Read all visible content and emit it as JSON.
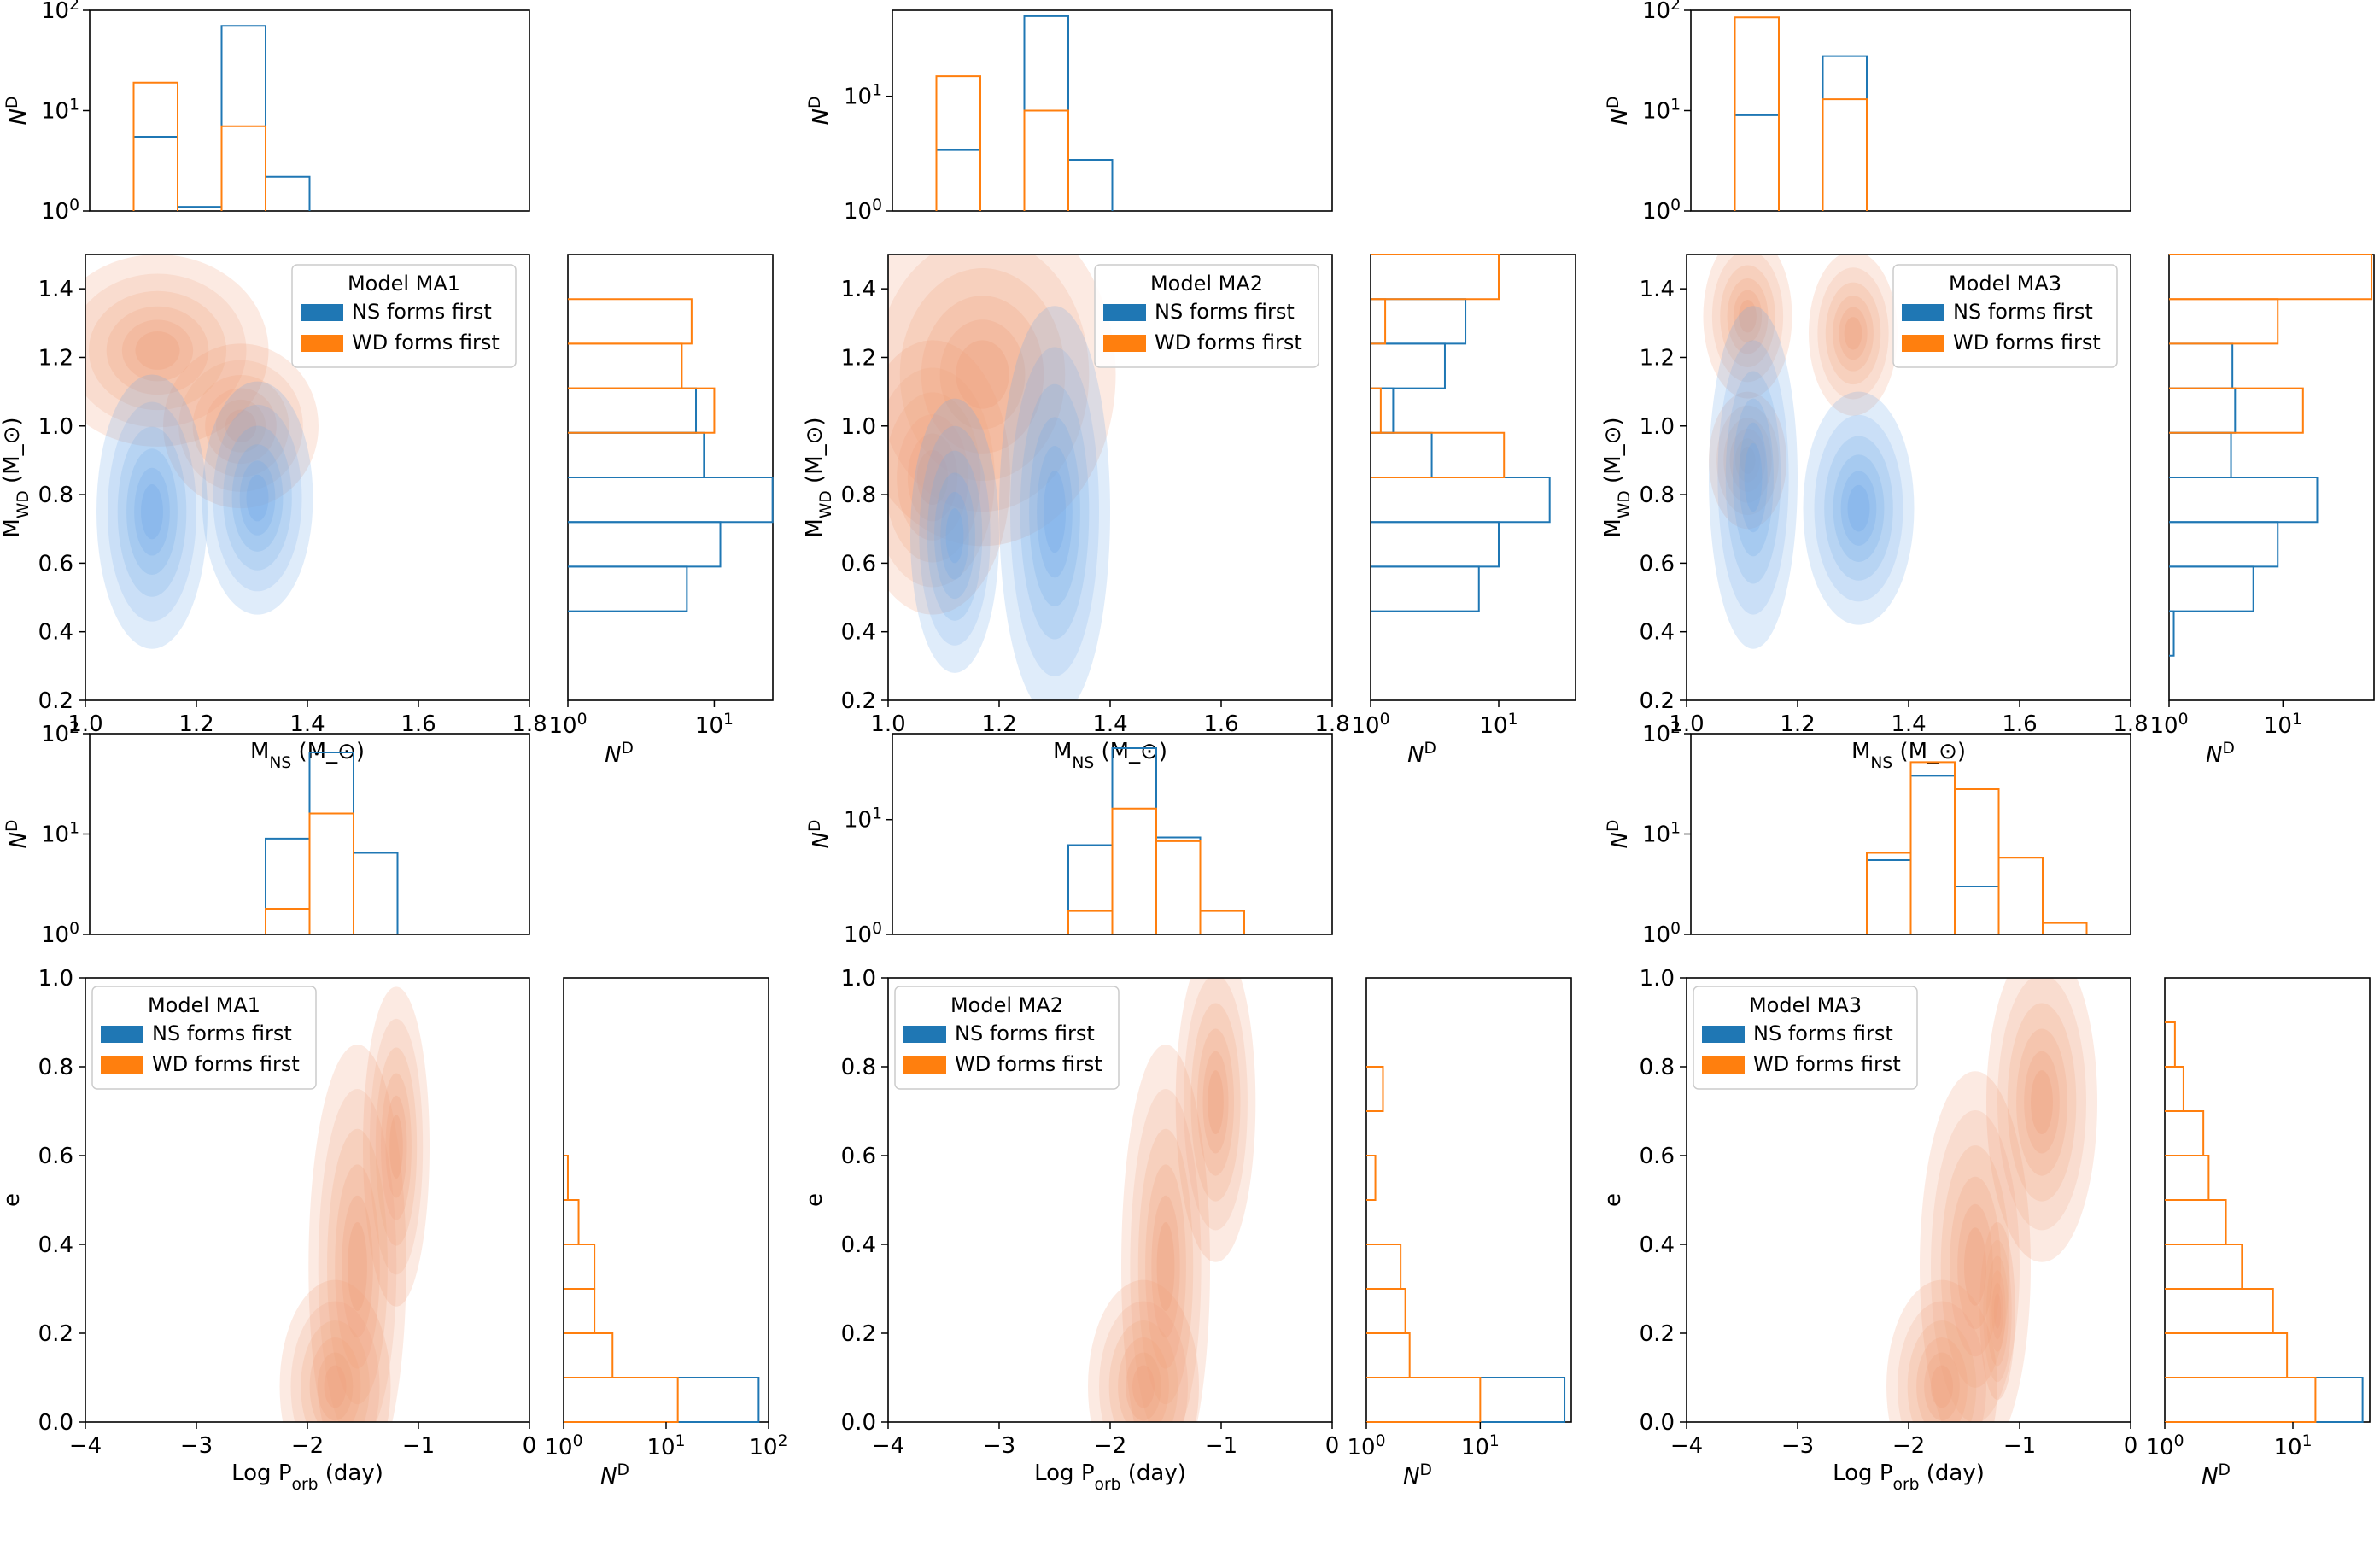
{
  "colors": {
    "ns": "#1f77b4",
    "wd": "#ff7f0e",
    "ns_fill": "#a9c8ee",
    "wd_fill": "#f4b79c"
  },
  "legend": {
    "ns_label": "NS forms first",
    "wd_label": "WD forms first"
  },
  "chart_data": [
    {
      "type": "composite-kde-histogram",
      "model": "Model MA1",
      "mass": {
        "xlabel": "M_NS (M_⊙)",
        "ylabel": "M_WD (M_⊙)",
        "xlim": [
          1.0,
          1.8
        ],
        "ylim": [
          0.2,
          1.5
        ],
        "xticks": [
          "1.0",
          "1.2",
          "1.4",
          "1.6",
          "1.8"
        ],
        "yticks": [
          "0.2",
          "0.4",
          "0.6",
          "0.8",
          "1.0",
          "1.2",
          "1.4"
        ],
        "kde_ns": [
          {
            "cx": 1.31,
            "cy": 0.79,
            "sx": 0.05,
            "sy": 0.17
          },
          {
            "cx": 1.12,
            "cy": 0.75,
            "sx": 0.05,
            "sy": 0.2
          }
        ],
        "kde_wd": [
          {
            "cx": 1.13,
            "cy": 1.22,
            "sx": 0.1,
            "sy": 0.14
          },
          {
            "cx": 1.28,
            "cy": 1.0,
            "sx": 0.07,
            "sy": 0.12
          }
        ],
        "top_hist": {
          "ylabel": "N^D",
          "yticks": [
            "10^0",
            "10^1",
            "10^2"
          ],
          "ylim_log": [
            0,
            2
          ],
          "edges": [
            1.08,
            1.16,
            1.24,
            1.32,
            1.4
          ],
          "ns": [
            5.5,
            1.1,
            70,
            2.2
          ],
          "wd": [
            19,
            0,
            7,
            0
          ]
        },
        "right_hist": {
          "xlabel": "N^D",
          "xticks": [
            "10^0",
            "10^1"
          ],
          "xlim_log": [
            0,
            1.4
          ],
          "edges": [
            0.46,
            0.59,
            0.72,
            0.85,
            0.98,
            1.11,
            1.24,
            1.37
          ],
          "ns": [
            6.5,
            11,
            25,
            8.5,
            7.5,
            0,
            0
          ],
          "wd": [
            0,
            0,
            0,
            0,
            10,
            6,
            7
          ]
        }
      },
      "period": {
        "xlabel": "Log P_orb (day)",
        "ylabel": "e",
        "xlim": [
          -4,
          0
        ],
        "ylim": [
          0.0,
          1.0
        ],
        "xticks": [
          "−4",
          "−3",
          "−2",
          "−1",
          "0"
        ],
        "yticks": [
          "0.0",
          "0.2",
          "0.4",
          "0.6",
          "0.8",
          "1.0"
        ],
        "kde_wd": [
          {
            "cx": -1.75,
            "cy": 0.08,
            "sx": 0.25,
            "sy": 0.12
          },
          {
            "cx": -1.55,
            "cy": 0.35,
            "sx": 0.22,
            "sy": 0.25
          },
          {
            "cx": -1.2,
            "cy": 0.62,
            "sx": 0.15,
            "sy": 0.18
          }
        ],
        "top_hist": {
          "ylabel": "N^D",
          "yticks": [
            "10^0",
            "10^1",
            "10^2"
          ],
          "ylim_log": [
            0,
            2
          ],
          "edges": [
            -2.4,
            -2.0,
            -1.6,
            -1.2
          ],
          "ns": [
            9,
            65,
            6.5
          ],
          "wd": [
            1.8,
            16,
            0
          ]
        },
        "right_hist": {
          "xlabel": "N^D",
          "xticks": [
            "10^0",
            "10^1",
            "10^2"
          ],
          "xlim_log": [
            0,
            2
          ],
          "edges": [
            0.0,
            0.1,
            0.2,
            0.3,
            0.4,
            0.5,
            0.6
          ],
          "ns": [
            80,
            0,
            0,
            0,
            0,
            0
          ],
          "wd": [
            13,
            3,
            2,
            2,
            1.4,
            1.1
          ]
        }
      }
    },
    {
      "type": "composite-kde-histogram",
      "model": "Model MA2",
      "mass": {
        "xlabel": "M_NS (M_⊙)",
        "ylabel": "M_WD (M_⊙)",
        "xlim": [
          1.0,
          1.8
        ],
        "ylim": [
          0.2,
          1.5
        ],
        "xticks": [
          "1.0",
          "1.2",
          "1.4",
          "1.6",
          "1.8"
        ],
        "yticks": [
          "0.2",
          "0.4",
          "0.6",
          "0.8",
          "1.0",
          "1.2",
          "1.4"
        ],
        "kde_ns": [
          {
            "cx": 1.3,
            "cy": 0.75,
            "sx": 0.05,
            "sy": 0.3
          },
          {
            "cx": 1.12,
            "cy": 0.68,
            "sx": 0.04,
            "sy": 0.2
          }
        ],
        "kde_wd": [
          {
            "cx": 1.17,
            "cy": 1.15,
            "sx": 0.12,
            "sy": 0.25
          },
          {
            "cx": 1.08,
            "cy": 0.85,
            "sx": 0.07,
            "sy": 0.2
          }
        ],
        "top_hist": {
          "ylabel": "N^D",
          "yticks": [
            "10^0",
            "10^1"
          ],
          "ylim_log": [
            0,
            1.75
          ],
          "edges": [
            1.08,
            1.16,
            1.24,
            1.32,
            1.4
          ],
          "ns": [
            3.4,
            0,
            50,
            2.8
          ],
          "wd": [
            15,
            0,
            7.5,
            0
          ]
        },
        "right_hist": {
          "xlabel": "N^D",
          "xticks": [
            "10^0",
            "10^1"
          ],
          "xlim_log": [
            0,
            1.6
          ],
          "edges": [
            0.46,
            0.59,
            0.72,
            0.85,
            0.98,
            1.11,
            1.24,
            1.37,
            1.5
          ],
          "ns": [
            7,
            10,
            25,
            3,
            1.5,
            3.8,
            5.5,
            0
          ],
          "wd": [
            0,
            0,
            0,
            11,
            1.2,
            0,
            1.3,
            10
          ]
        }
      },
      "period": {
        "xlabel": "Log P_orb (day)",
        "ylabel": "e",
        "xlim": [
          -4,
          0
        ],
        "ylim": [
          0.0,
          1.0
        ],
        "xticks": [
          "−4",
          "−3",
          "−2",
          "−1",
          "0"
        ],
        "yticks": [
          "0.0",
          "0.2",
          "0.4",
          "0.6",
          "0.8",
          "1.0"
        ],
        "kde_wd": [
          {
            "cx": -1.7,
            "cy": 0.08,
            "sx": 0.25,
            "sy": 0.12
          },
          {
            "cx": -1.5,
            "cy": 0.35,
            "sx": 0.2,
            "sy": 0.25
          },
          {
            "cx": -1.05,
            "cy": 0.72,
            "sx": 0.18,
            "sy": 0.18
          }
        ],
        "top_hist": {
          "ylabel": "N^D",
          "yticks": [
            "10^0",
            "10^1"
          ],
          "ylim_log": [
            0,
            1.75
          ],
          "edges": [
            -2.4,
            -2.0,
            -1.6,
            -1.2,
            -0.8
          ],
          "ns": [
            6,
            42,
            7,
            0
          ],
          "wd": [
            1.6,
            12.5,
            6.5,
            1.6
          ]
        },
        "right_hist": {
          "xlabel": "N^D",
          "xticks": [
            "10^0",
            "10^1"
          ],
          "xlim_log": [
            0,
            1.8
          ],
          "edges": [
            0.0,
            0.1,
            0.2,
            0.3,
            0.4,
            0.5,
            0.6,
            0.7,
            0.8
          ],
          "ns": [
            55,
            0,
            0,
            0,
            0,
            0,
            0,
            0
          ],
          "wd": [
            10,
            2.4,
            2.2,
            2,
            0,
            1.2,
            0,
            1.4
          ]
        }
      }
    },
    {
      "type": "composite-kde-histogram",
      "model": "Model MA3",
      "mass": {
        "xlabel": "M_NS (M_⊙)",
        "ylabel": "M_WD (M_⊙)",
        "xlim": [
          1.0,
          1.8
        ],
        "ylim": [
          0.2,
          1.5
        ],
        "xticks": [
          "1.0",
          "1.2",
          "1.4",
          "1.6",
          "1.8"
        ],
        "yticks": [
          "0.2",
          "0.4",
          "0.6",
          "0.8",
          "1.0",
          "1.2",
          "1.4"
        ],
        "kde_ns": [
          {
            "cx": 1.31,
            "cy": 0.76,
            "sx": 0.05,
            "sy": 0.17
          },
          {
            "cx": 1.12,
            "cy": 0.85,
            "sx": 0.04,
            "sy": 0.25
          }
        ],
        "kde_wd": [
          {
            "cx": 1.11,
            "cy": 1.32,
            "sx": 0.04,
            "sy": 0.12
          },
          {
            "cx": 1.11,
            "cy": 0.9,
            "sx": 0.035,
            "sy": 0.1
          },
          {
            "cx": 1.3,
            "cy": 1.27,
            "sx": 0.04,
            "sy": 0.12
          }
        ],
        "top_hist": {
          "ylabel": "N^D",
          "yticks": [
            "10^0",
            "10^1",
            "10^2"
          ],
          "ylim_log": [
            0,
            2
          ],
          "edges": [
            1.08,
            1.16,
            1.24,
            1.32
          ],
          "ns": [
            9,
            0,
            35
          ],
          "wd": [
            85,
            0,
            13
          ]
        },
        "right_hist": {
          "xlabel": "N^D",
          "xticks": [
            "10^0",
            "10^1"
          ],
          "xlim_log": [
            0,
            1.8
          ],
          "edges": [
            0.33,
            0.46,
            0.59,
            0.72,
            0.85,
            0.98,
            1.11,
            1.24,
            1.37,
            1.5
          ],
          "ns": [
            1.1,
            5.5,
            9,
            20,
            3.5,
            3.8,
            3.6,
            0,
            0
          ],
          "wd": [
            0,
            0,
            0,
            0,
            0,
            15,
            0,
            9,
            60
          ]
        }
      },
      "period": {
        "xlabel": "Log P_orb (day)",
        "ylabel": "e",
        "xlim": [
          -4,
          0
        ],
        "ylim": [
          0.0,
          1.0
        ],
        "xticks": [
          "−4",
          "−3",
          "−2",
          "−1",
          "0"
        ],
        "yticks": [
          "0.0",
          "0.2",
          "0.4",
          "0.6",
          "0.8",
          "1.0"
        ],
        "kde_wd": [
          {
            "cx": -1.7,
            "cy": 0.08,
            "sx": 0.25,
            "sy": 0.12
          },
          {
            "cx": -1.4,
            "cy": 0.35,
            "sx": 0.25,
            "sy": 0.22
          },
          {
            "cx": -0.8,
            "cy": 0.72,
            "sx": 0.25,
            "sy": 0.18
          },
          {
            "cx": -1.2,
            "cy": 0.25,
            "sx": 0.08,
            "sy": 0.1
          }
        ],
        "top_hist": {
          "ylabel": "N^D",
          "yticks": [
            "10^0",
            "10^1",
            "10^2"
          ],
          "ylim_log": [
            0,
            2
          ],
          "edges": [
            -2.4,
            -2.0,
            -1.6,
            -1.2,
            -0.8,
            -0.4
          ],
          "ns": [
            5.5,
            38,
            3,
            0,
            0
          ],
          "wd": [
            6.5,
            52,
            28,
            5.8,
            1.3
          ]
        },
        "right_hist": {
          "xlabel": "N^D",
          "xticks": [
            "10^0",
            "10^1"
          ],
          "xlim_log": [
            0,
            1.6
          ],
          "edges": [
            0.0,
            0.1,
            0.2,
            0.3,
            0.4,
            0.5,
            0.6,
            0.7,
            0.8,
            0.9
          ],
          "ns": [
            35,
            0,
            0,
            0,
            0,
            0,
            0,
            0,
            0
          ],
          "wd": [
            15,
            9,
            7,
            4,
            3,
            2.2,
            2,
            1.4,
            1.2
          ]
        }
      }
    }
  ]
}
